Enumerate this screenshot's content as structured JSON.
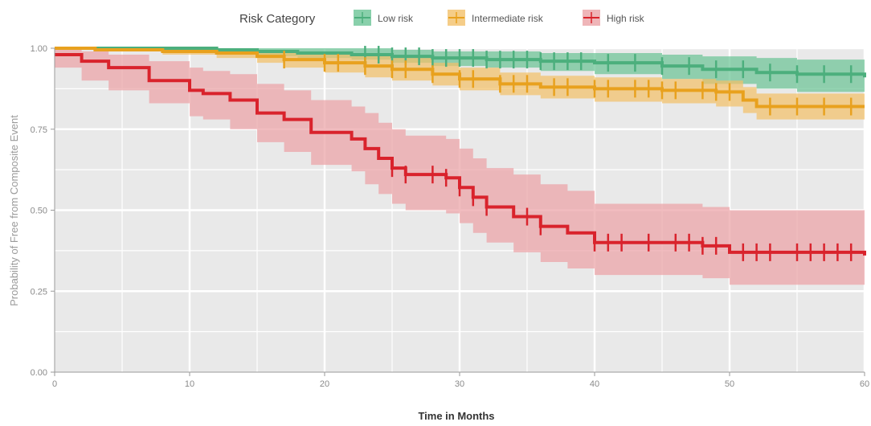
{
  "chart_data": {
    "type": "line",
    "title": "",
    "xlabel": "Time in Months",
    "ylabel": "Probability of Free from  Composite Event",
    "xlim": [
      0,
      60
    ],
    "ylim": [
      0,
      1
    ],
    "x_ticks": [
      0,
      10,
      20,
      30,
      40,
      50,
      60
    ],
    "y_ticks": [
      0,
      0.25,
      0.5,
      0.75,
      1.0
    ],
    "x_tick_labels": [
      "0",
      "10",
      "20",
      "30",
      "40",
      "50",
      "60"
    ],
    "y_tick_labels": [
      "0.00",
      "0.25",
      "0.50",
      "0.75",
      "1.00"
    ],
    "grid": true,
    "legend": {
      "title": "Risk Category",
      "position": "top-center"
    },
    "series": [
      {
        "name": "Low risk",
        "color": "#4caf7d",
        "band_color": "#6cc496",
        "x": [
          0,
          8,
          12,
          15,
          18,
          22,
          25,
          28,
          32,
          36,
          40,
          45,
          48,
          52,
          55,
          60
        ],
        "y": [
          1.0,
          1.0,
          0.995,
          0.99,
          0.985,
          0.98,
          0.975,
          0.97,
          0.965,
          0.96,
          0.955,
          0.945,
          0.935,
          0.925,
          0.92,
          0.91
        ],
        "lower": [
          1.0,
          0.99,
          0.985,
          0.975,
          0.97,
          0.965,
          0.955,
          0.945,
          0.94,
          0.93,
          0.92,
          0.905,
          0.89,
          0.875,
          0.865,
          0.85
        ],
        "upper": [
          1.0,
          1.0,
          1.0,
          1.0,
          1.0,
          1.0,
          0.995,
          0.99,
          0.99,
          0.985,
          0.985,
          0.98,
          0.975,
          0.97,
          0.965,
          0.96
        ],
        "censored_x": [
          23,
          24,
          25,
          26,
          27,
          28,
          29,
          30,
          31,
          32,
          33,
          34,
          35,
          36,
          37,
          38,
          39,
          41,
          43,
          45,
          47,
          49,
          51,
          53,
          55,
          57,
          59
        ]
      },
      {
        "name": "Intermediate risk",
        "color": "#e8a11e",
        "band_color": "#f2c16a",
        "x": [
          0,
          3,
          8,
          12,
          15,
          17,
          20,
          23,
          25,
          28,
          30,
          33,
          36,
          40,
          45,
          49,
          51,
          52,
          60
        ],
        "y": [
          1.0,
          0.995,
          0.99,
          0.985,
          0.975,
          0.965,
          0.955,
          0.945,
          0.935,
          0.92,
          0.905,
          0.89,
          0.88,
          0.875,
          0.87,
          0.865,
          0.84,
          0.82,
          0.82
        ],
        "lower": [
          1.0,
          0.99,
          0.98,
          0.97,
          0.955,
          0.94,
          0.925,
          0.91,
          0.9,
          0.885,
          0.87,
          0.855,
          0.845,
          0.835,
          0.83,
          0.82,
          0.8,
          0.78,
          0.78
        ],
        "upper": [
          1.0,
          1.0,
          1.0,
          1.0,
          0.995,
          0.99,
          0.985,
          0.98,
          0.97,
          0.955,
          0.94,
          0.925,
          0.915,
          0.91,
          0.905,
          0.9,
          0.88,
          0.86,
          0.86
        ],
        "censored_x": [
          17,
          20,
          21,
          23,
          25,
          26,
          28,
          30,
          31,
          33,
          34,
          35,
          37,
          38,
          40,
          41,
          43,
          44,
          45,
          46,
          48,
          49,
          50,
          53,
          55,
          57,
          59
        ]
      },
      {
        "name": "High risk",
        "color": "#d9232c",
        "band_color": "#eba2a6",
        "x": [
          0,
          2,
          4,
          7,
          10,
          11,
          13,
          15,
          17,
          19,
          22,
          23,
          24,
          25,
          26,
          29,
          30,
          31,
          32,
          34,
          36,
          38,
          40,
          48,
          50,
          60
        ],
        "y": [
          0.98,
          0.96,
          0.94,
          0.9,
          0.87,
          0.86,
          0.84,
          0.8,
          0.78,
          0.74,
          0.72,
          0.69,
          0.66,
          0.63,
          0.61,
          0.6,
          0.57,
          0.54,
          0.51,
          0.48,
          0.45,
          0.43,
          0.4,
          0.39,
          0.37,
          0.36
        ],
        "lower": [
          0.94,
          0.9,
          0.87,
          0.83,
          0.79,
          0.78,
          0.75,
          0.71,
          0.68,
          0.64,
          0.62,
          0.58,
          0.55,
          0.52,
          0.5,
          0.49,
          0.46,
          0.43,
          0.4,
          0.37,
          0.34,
          0.32,
          0.3,
          0.29,
          0.27,
          0.27
        ],
        "upper": [
          1.0,
          0.99,
          0.98,
          0.96,
          0.94,
          0.93,
          0.92,
          0.89,
          0.87,
          0.84,
          0.82,
          0.8,
          0.77,
          0.75,
          0.73,
          0.72,
          0.69,
          0.66,
          0.63,
          0.61,
          0.58,
          0.56,
          0.52,
          0.51,
          0.5,
          0.5
        ],
        "censored_x": [
          25,
          26,
          28,
          29,
          30,
          31,
          32,
          35,
          36,
          40,
          41,
          42,
          44,
          46,
          47,
          48,
          49,
          51,
          52,
          53,
          55,
          56,
          57,
          58,
          59
        ]
      }
    ]
  }
}
